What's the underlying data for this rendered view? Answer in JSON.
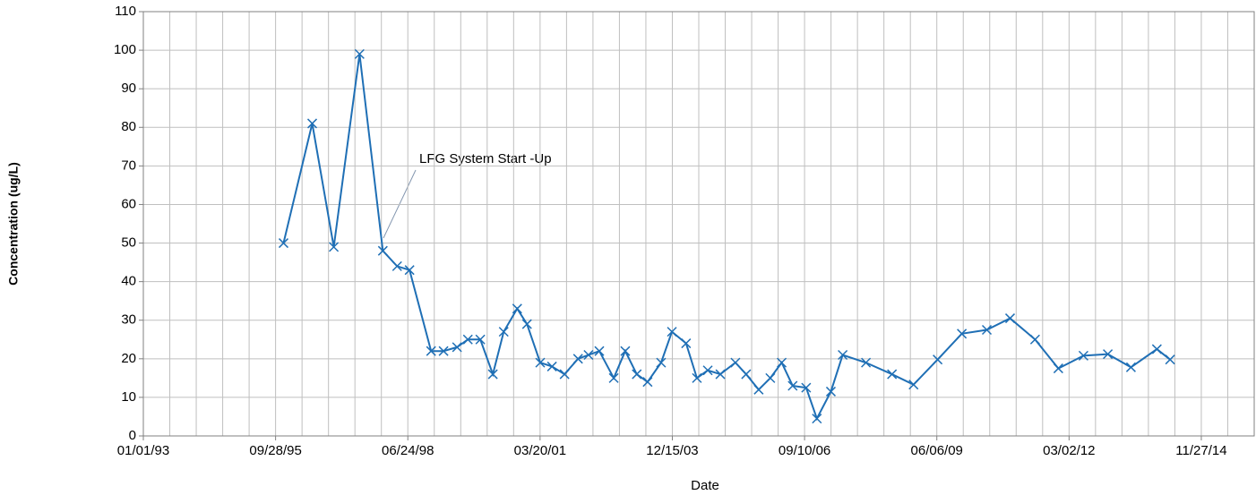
{
  "chart_data": {
    "type": "line",
    "xlabel": "Date",
    "ylabel": "Concentration (ug/L)",
    "annotation": "LFG System Start -Up",
    "x": [
      "1995-11-27",
      "1996-07-01",
      "1996-12-11",
      "1997-06-24",
      "1997-12-17",
      "1998-04-04",
      "1998-07-07",
      "1998-12-17",
      "1999-03-21",
      "1999-07-01",
      "1999-09-21",
      "1999-12-24",
      "2000-03-28",
      "2000-06-18",
      "2000-09-28",
      "2000-12-11",
      "2001-03-21",
      "2001-06-18",
      "2001-09-21",
      "2002-01-01",
      "2002-03-21",
      "2002-06-11",
      "2002-09-28",
      "2002-12-24",
      "2003-03-21",
      "2003-06-11",
      "2003-09-21",
      "2003-12-12",
      "2004-03-28",
      "2004-06-18",
      "2004-09-08",
      "2004-12-12",
      "2005-04-05",
      "2005-06-25",
      "2005-09-28",
      "2005-12-25",
      "2006-03-21",
      "2006-06-12",
      "2006-09-22",
      "2006-12-12",
      "2007-03-28",
      "2007-06-25",
      "2007-12-18",
      "2008-07-02",
      "2008-12-12",
      "2009-06-12",
      "2009-12-12",
      "2010-06-19",
      "2010-12-12",
      "2011-06-19",
      "2011-12-12",
      "2012-06-19",
      "2012-12-20",
      "2013-06-13",
      "2013-12-26",
      "2014-04-05"
    ],
    "series": [
      {
        "name": "Concentration",
        "color": "#1f6fb5",
        "values": [
          50,
          81,
          49,
          99,
          48,
          44,
          43,
          22,
          22,
          23,
          25,
          25,
          16,
          27,
          33,
          29,
          19,
          18,
          16,
          20,
          21,
          22,
          15,
          22,
          16,
          14,
          19,
          27,
          24,
          15,
          17,
          16,
          19,
          16,
          12,
          15,
          19,
          13,
          12.5,
          4.5,
          11.5,
          21,
          19,
          16,
          13.3,
          19.8,
          26.5,
          27.5,
          30.5,
          25,
          17.5,
          20.8,
          21.2,
          17.8,
          22.5,
          19.8
        ]
      }
    ],
    "xlim": [
      "1993-01-01",
      "2016-01-01"
    ],
    "xticks": [
      {
        "value": "1993-01-01",
        "label": "01/01/93"
      },
      {
        "value": "1995-09-28",
        "label": "09/28/95"
      },
      {
        "value": "1998-06-24",
        "label": "06/24/98"
      },
      {
        "value": "2001-03-20",
        "label": "03/20/01"
      },
      {
        "value": "2003-12-15",
        "label": "12/15/03"
      },
      {
        "value": "2006-09-10",
        "label": "09/10/06"
      },
      {
        "value": "2009-06-06",
        "label": "06/06/09"
      },
      {
        "value": "2012-03-02",
        "label": "03/02/12"
      },
      {
        "value": "2014-11-27",
        "label": "11/27/14"
      }
    ],
    "x_grid_interval_days": 200,
    "ylim": [
      0,
      110
    ],
    "yticks": [
      0,
      10,
      20,
      30,
      40,
      50,
      60,
      70,
      80,
      90,
      100,
      110
    ],
    "grid": true
  }
}
